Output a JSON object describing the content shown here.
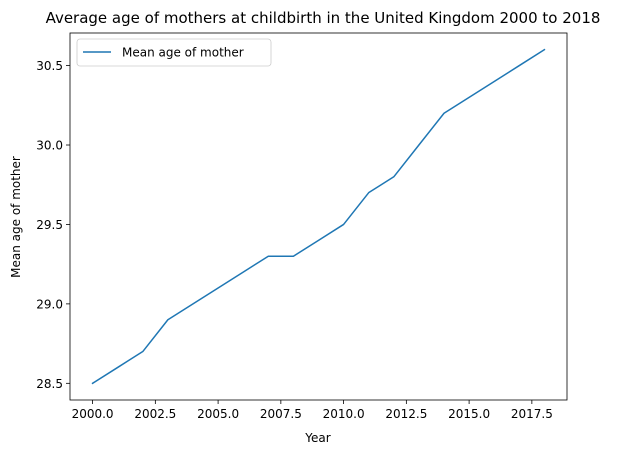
{
  "chart_data": {
    "type": "line",
    "title": "Average age of mothers at childbirth in the United Kingdom 2000 to 2018",
    "xlabel": "Year",
    "ylabel": "Mean age of mother",
    "xlim": [
      1999.1,
      2018.9
    ],
    "ylim": [
      28.395,
      30.705
    ],
    "xticks": [
      2000.0,
      2002.5,
      2005.0,
      2007.5,
      2010.0,
      2012.5,
      2015.0,
      2017.5
    ],
    "xtick_labels": [
      "2000.0",
      "2002.5",
      "2005.0",
      "2007.5",
      "2010.0",
      "2012.5",
      "2015.0",
      "2017.5"
    ],
    "yticks": [
      28.5,
      29.0,
      29.5,
      30.0,
      30.5
    ],
    "ytick_labels": [
      "28.5",
      "29.0",
      "29.5",
      "30.0",
      "30.5"
    ],
    "grid": false,
    "legend": {
      "position": "upper-left",
      "entries": [
        "Mean age of mother"
      ]
    },
    "series": [
      {
        "name": "Mean age of mother",
        "color": "#1f77b4",
        "x": [
          2000,
          2001,
          2002,
          2003,
          2004,
          2005,
          2006,
          2007,
          2008,
          2009,
          2010,
          2011,
          2012,
          2013,
          2014,
          2015,
          2016,
          2017,
          2018
        ],
        "y": [
          28.5,
          28.6,
          28.7,
          28.9,
          29.0,
          29.1,
          29.2,
          29.3,
          29.3,
          29.4,
          29.5,
          29.7,
          29.8,
          30.0,
          30.2,
          30.3,
          30.4,
          30.5,
          30.6
        ]
      }
    ]
  }
}
